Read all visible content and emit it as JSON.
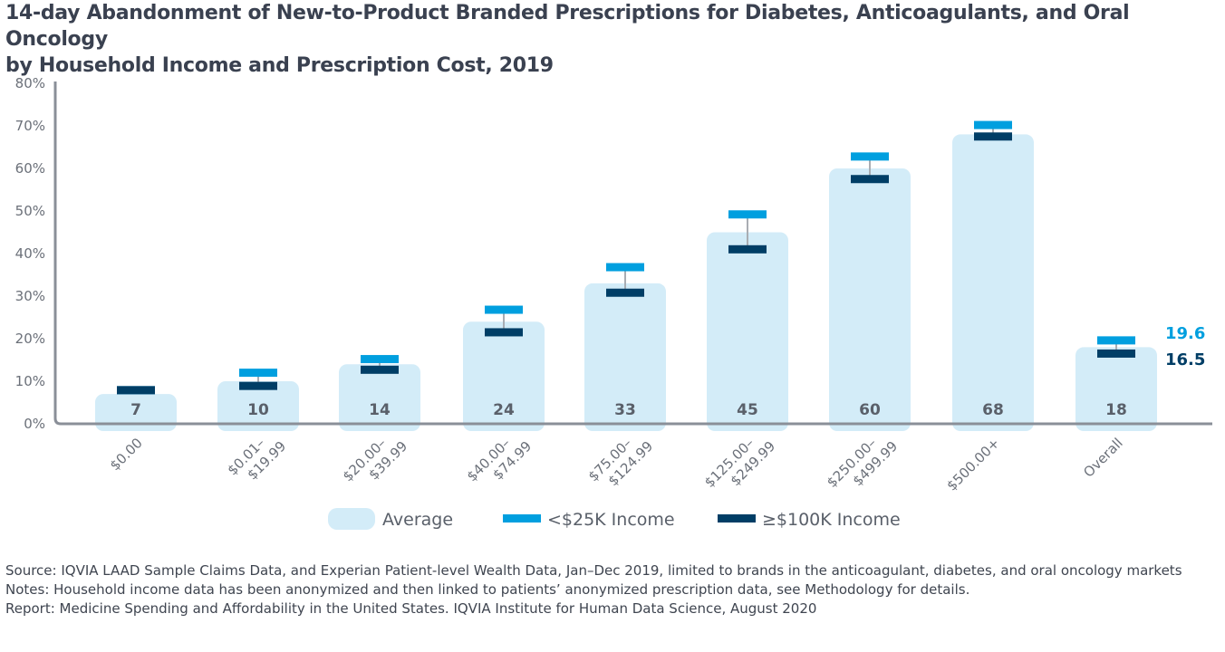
{
  "title": {
    "line1": "14-day Abandonment of New-to-Product Branded Prescriptions for Diabetes, Anticoagulants, and Oral Oncology",
    "line2": "by Household Income and Prescription Cost, 2019"
  },
  "colors": {
    "average": "#d3ecf8",
    "low_income": "#009fdf",
    "high_income": "#003e66",
    "axis": "#8a8f98",
    "whisker": "#a9adb3"
  },
  "chart_data": {
    "type": "bar",
    "title": "14-day Abandonment of New-to-Product Branded Prescriptions for Diabetes, Anticoagulants, and Oral Oncology by Household Income and Prescription Cost, 2019",
    "categories": [
      [
        "$0.00"
      ],
      [
        "$0.01–",
        "$19.99"
      ],
      [
        "$20.00–",
        "$39.99"
      ],
      [
        "$40.00–",
        "$74.99"
      ],
      [
        "$75.00–",
        "$124.99"
      ],
      [
        "$125.00–",
        "$249.99"
      ],
      [
        "$250.00–",
        "$499.99"
      ],
      [
        "$500.00+"
      ],
      [
        "Overall"
      ]
    ],
    "series": [
      {
        "name": "Average",
        "values": [
          7,
          10,
          14,
          24,
          33,
          45,
          60,
          68,
          18
        ],
        "labels": [
          "7",
          "10",
          "14",
          "24",
          "33",
          "45",
          "60",
          "68",
          "18"
        ]
      },
      {
        "name": "<$25K Income",
        "values": [
          7.9,
          12.0,
          15.2,
          26.8,
          36.8,
          49.2,
          62.8,
          70.2,
          19.6
        ]
      },
      {
        "name": "≥$100K Income",
        "values": [
          7.9,
          8.9,
          12.7,
          21.5,
          30.8,
          41.0,
          57.5,
          67.5,
          16.5
        ]
      }
    ],
    "end_labels": {
      "low": "19.6",
      "high": "16.5"
    },
    "yticks": [
      "0%",
      "10%",
      "20%",
      "30%",
      "40%",
      "50%",
      "60%",
      "70%",
      "80%"
    ],
    "ylim": [
      0,
      80
    ],
    "xlabel": "",
    "ylabel": "",
    "legend": [
      "Average",
      "<$25K Income",
      "≥$100K Income"
    ],
    "legend_position": "bottom-center"
  },
  "notes": {
    "source": "Source: IQVIA LAAD Sample Claims Data, and Experian Patient-level Wealth Data, Jan–Dec 2019, limited to brands in the anticoagulant, diabetes, and oral oncology markets",
    "notes": "Notes: Household income data has been anonymized and then linked to patients’ anonymized prescription data, see Methodology for details.",
    "report": "Report: Medicine Spending and Affordability in the United States. IQVIA Institute for Human Data Science, August 2020"
  }
}
